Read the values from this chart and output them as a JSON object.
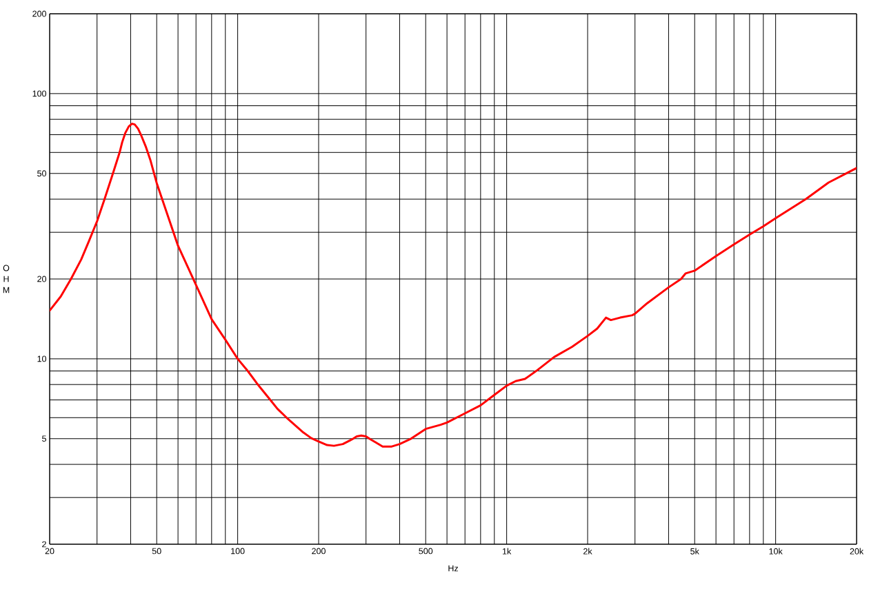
{
  "chart_data": {
    "type": "line",
    "xlabel": "Hz",
    "ylabel": "OHM",
    "log": "xy",
    "grid": true,
    "xlim": [
      20,
      20000
    ],
    "ylim": [
      2,
      200
    ],
    "xticks": [
      20,
      {
        "value": 30,
        "label": null
      },
      {
        "value": 40,
        "label": null
      },
      50,
      {
        "value": 60,
        "label": null
      },
      {
        "value": 70,
        "label": null
      },
      {
        "value": 80,
        "label": null
      },
      {
        "value": 90,
        "label": null
      },
      100,
      200,
      {
        "value": 300,
        "label": null
      },
      {
        "value": 400,
        "label": null
      },
      500,
      {
        "value": 600,
        "label": null
      },
      {
        "value": 700,
        "label": null
      },
      {
        "value": 800,
        "label": null
      },
      {
        "value": 900,
        "label": null
      },
      {
        "value": 1000,
        "label": "1k"
      },
      {
        "value": 2000,
        "label": "2k"
      },
      {
        "value": 3000,
        "label": null
      },
      {
        "value": 4000,
        "label": null
      },
      {
        "value": 5000,
        "label": "5k"
      },
      {
        "value": 6000,
        "label": null
      },
      {
        "value": 7000,
        "label": null
      },
      {
        "value": 8000,
        "label": null
      },
      {
        "value": 9000,
        "label": null
      },
      {
        "value": 10000,
        "label": "10k"
      },
      {
        "value": 20000,
        "label": "20k"
      }
    ],
    "yticks": [
      2,
      {
        "value": 3,
        "label": null
      },
      {
        "value": 4,
        "label": null
      },
      5,
      {
        "value": 6,
        "label": null
      },
      {
        "value": 7,
        "label": null
      },
      {
        "value": 8,
        "label": null
      },
      {
        "value": 9,
        "label": null
      },
      10,
      20,
      {
        "value": 30,
        "label": null
      },
      {
        "value": 40,
        "label": null
      },
      50,
      {
        "value": 60,
        "label": null
      },
      {
        "value": 70,
        "label": null
      },
      {
        "value": 80,
        "label": null
      },
      {
        "value": 90,
        "label": null
      },
      100,
      200
    ],
    "x": [
      20,
      22,
      24,
      26.2,
      28,
      30,
      32,
      34.7,
      36.4,
      37.2,
      38.2,
      39.4,
      40.5,
      41.4,
      42.6,
      43.8,
      45.6,
      47.4,
      50,
      53.2,
      60,
      70,
      80,
      90,
      100,
      109,
      118,
      133,
      140.5,
      152,
      174,
      188,
      200,
      215,
      228,
      246,
      267,
      277,
      288,
      300,
      311,
      327,
      346,
      374,
      400,
      441,
      500,
      568,
      600,
      700,
      800,
      900,
      1000,
      1080,
      1170,
      1290,
      1500,
      1750,
      2000,
      2170,
      2340,
      2440,
      2640,
      2930,
      3000,
      3330,
      4000,
      4450,
      4630,
      5000,
      6000,
      7000,
      8000,
      9000,
      10000,
      12950,
      15730,
      20000
    ],
    "series": [
      {
        "color": "#ff0000",
        "values": [
          15.2,
          17.2,
          20,
          23.7,
          27.8,
          33,
          40,
          51.5,
          60,
          65.5,
          71,
          75.3,
          77,
          76.5,
          73.8,
          69.5,
          62.9,
          56,
          46,
          38.2,
          26.7,
          19,
          14.1,
          11.8,
          10,
          9,
          8.07,
          6.95,
          6.48,
          6,
          5.31,
          5.02,
          4.88,
          4.73,
          4.7,
          4.77,
          4.98,
          5.1,
          5.14,
          5.1,
          4.98,
          4.83,
          4.67,
          4.67,
          4.77,
          5,
          5.44,
          5.64,
          5.75,
          6.23,
          6.68,
          7.31,
          7.92,
          8.24,
          8.4,
          9.01,
          10.15,
          11.1,
          12.2,
          13,
          14.3,
          14,
          14.3,
          14.6,
          14.8,
          16.2,
          18.6,
          20,
          21,
          21.5,
          24.4,
          27,
          29.4,
          31.6,
          33.9,
          40,
          46.2,
          52.4
        ]
      }
    ]
  }
}
